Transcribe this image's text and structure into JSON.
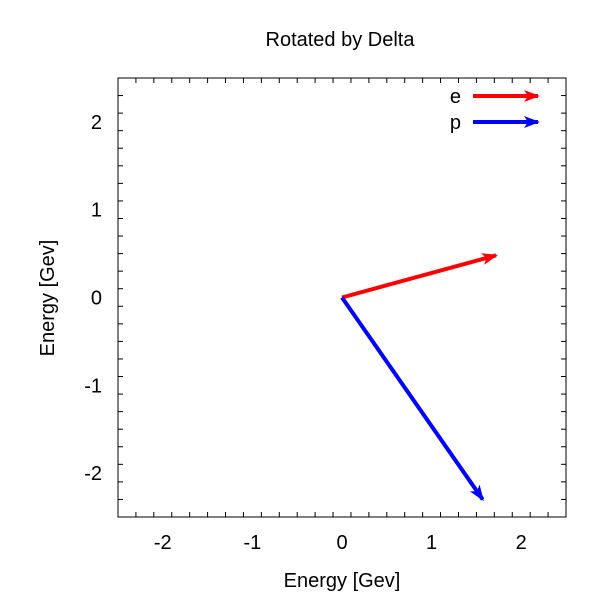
{
  "chart_data": {
    "type": "vector",
    "title": "Rotated by Delta",
    "xlabel": "Energy [Gev]",
    "ylabel": "Energy [Gev]",
    "xlim": [
      -2.5,
      2.5
    ],
    "ylim": [
      -2.5,
      2.5
    ],
    "xticks": [
      -2,
      -1,
      0,
      1,
      2
    ],
    "yticks": [
      -2,
      -1,
      0,
      1,
      2
    ],
    "xtick_labels": [
      "-2",
      "-1",
      "0",
      "1",
      "2"
    ],
    "ytick_labels": [
      "-2",
      "-1",
      "0",
      "1",
      "2"
    ],
    "minor_ticks_per_major": 4,
    "grid": false,
    "legend_position": "top-right",
    "series": [
      {
        "name": "e",
        "color": "#ff0000",
        "x0": 0,
        "y0": 0,
        "dx": 1.72,
        "dy": 0.48
      },
      {
        "name": "p",
        "color": "#0000ff",
        "x0": 0,
        "y0": 0,
        "dx": 1.57,
        "dy": -2.3
      }
    ]
  }
}
